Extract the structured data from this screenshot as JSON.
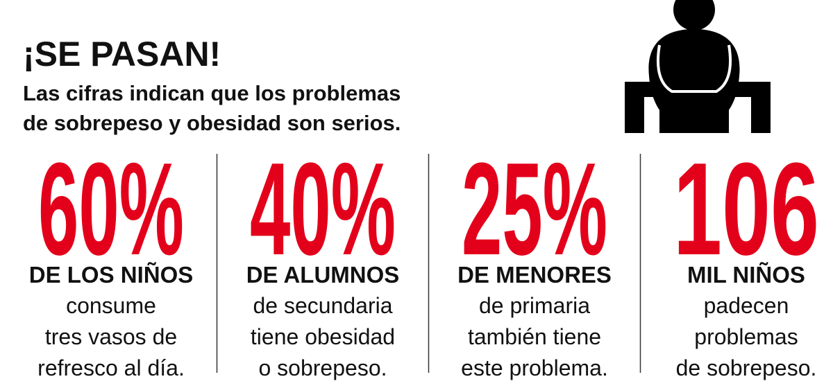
{
  "header": {
    "title": "¡SE PASAN!",
    "subtitle": [
      "Las cifras indican que los problemas",
      "de sobrepeso y obesidad son serios."
    ]
  },
  "stats": [
    {
      "figure": "60%",
      "heading": "DE LOS NIÑOS",
      "lines": [
        "consume",
        "tres vasos de",
        "refresco al día."
      ]
    },
    {
      "figure": "40%",
      "heading": "DE ALUMNOS",
      "lines": [
        "de secundaria",
        "tiene obesidad",
        "o sobrepeso."
      ]
    },
    {
      "figure": "25%",
      "heading": "DE MENORES",
      "lines": [
        "de primaria",
        "también tiene",
        "este problema."
      ]
    },
    {
      "figure": "106",
      "heading": "MIL NIÑOS",
      "lines": [
        "padecen",
        "problemas",
        "de sobrepeso."
      ]
    }
  ]
}
